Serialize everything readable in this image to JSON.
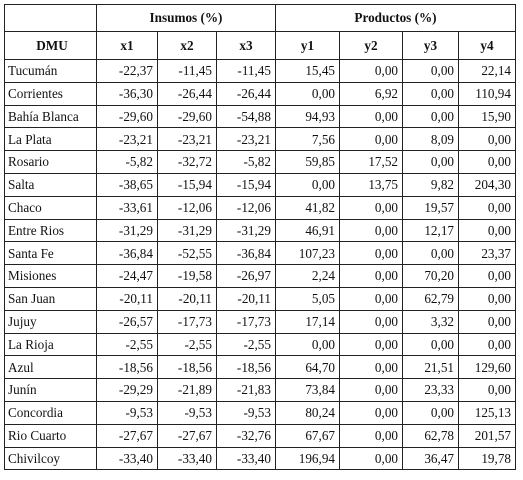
{
  "header": {
    "group_insumos": "Insumos (%)",
    "group_productos": "Productos (%)",
    "dmu": "DMU",
    "columns": [
      "x1",
      "x2",
      "x3",
      "y1",
      "y2",
      "y3",
      "y4"
    ]
  },
  "rows": [
    {
      "name": "Tucumán",
      "values": [
        "-22,37",
        "-11,45",
        "-11,45",
        "15,45",
        "0,00",
        "0,00",
        "22,14"
      ]
    },
    {
      "name": "Corrientes",
      "values": [
        "-36,30",
        "-26,44",
        "-26,44",
        "0,00",
        "6,92",
        "0,00",
        "110,94"
      ]
    },
    {
      "name": "Bahía Blanca",
      "values": [
        "-29,60",
        "-29,60",
        "-54,88",
        "94,93",
        "0,00",
        "0,00",
        "15,90"
      ]
    },
    {
      "name": "La Plata",
      "values": [
        "-23,21",
        "-23,21",
        "-23,21",
        "7,56",
        "0,00",
        "8,09",
        "0,00"
      ]
    },
    {
      "name": "Rosario",
      "values": [
        "-5,82",
        "-32,72",
        "-5,82",
        "59,85",
        "17,52",
        "0,00",
        "0,00"
      ]
    },
    {
      "name": "Salta",
      "values": [
        "-38,65",
        "-15,94",
        "-15,94",
        "0,00",
        "13,75",
        "9,82",
        "204,30"
      ]
    },
    {
      "name": "Chaco",
      "values": [
        "-33,61",
        "-12,06",
        "-12,06",
        "41,82",
        "0,00",
        "19,57",
        "0,00"
      ]
    },
    {
      "name": "Entre Rios",
      "values": [
        "-31,29",
        "-31,29",
        "-31,29",
        "46,91",
        "0,00",
        "12,17",
        "0,00"
      ]
    },
    {
      "name": "Santa Fe",
      "values": [
        "-36,84",
        "-52,55",
        "-36,84",
        "107,23",
        "0,00",
        "0,00",
        "23,37"
      ]
    },
    {
      "name": "Misiones",
      "values": [
        "-24,47",
        "-19,58",
        "-26,97",
        "2,24",
        "0,00",
        "70,20",
        "0,00"
      ]
    },
    {
      "name": "San Juan",
      "values": [
        "-20,11",
        "-20,11",
        "-20,11",
        "5,05",
        "0,00",
        "62,79",
        "0,00"
      ]
    },
    {
      "name": "Jujuy",
      "values": [
        "-26,57",
        "-17,73",
        "-17,73",
        "17,14",
        "0,00",
        "3,32",
        "0,00"
      ]
    },
    {
      "name": "La Rioja",
      "values": [
        "-2,55",
        "-2,55",
        "-2,55",
        "0,00",
        "0,00",
        "0,00",
        "0,00"
      ]
    },
    {
      "name": "Azul",
      "values": [
        "-18,56",
        "-18,56",
        "-18,56",
        "64,70",
        "0,00",
        "21,51",
        "129,60"
      ]
    },
    {
      "name": "Junín",
      "values": [
        "-29,29",
        "-21,89",
        "-21,83",
        "73,84",
        "0,00",
        "23,33",
        "0,00"
      ]
    },
    {
      "name": "Concordia",
      "values": [
        "-9,53",
        "-9,53",
        "-9,53",
        "80,24",
        "0,00",
        "0,00",
        "125,13"
      ]
    },
    {
      "name": "Rio Cuarto",
      "values": [
        "-27,67",
        "-27,67",
        "-32,76",
        "67,67",
        "0,00",
        "62,78",
        "201,57"
      ]
    },
    {
      "name": "Chivilcoy",
      "values": [
        "-33,40",
        "-33,40",
        "-33,40",
        "196,94",
        "0,00",
        "36,47",
        "19,78"
      ]
    }
  ]
}
